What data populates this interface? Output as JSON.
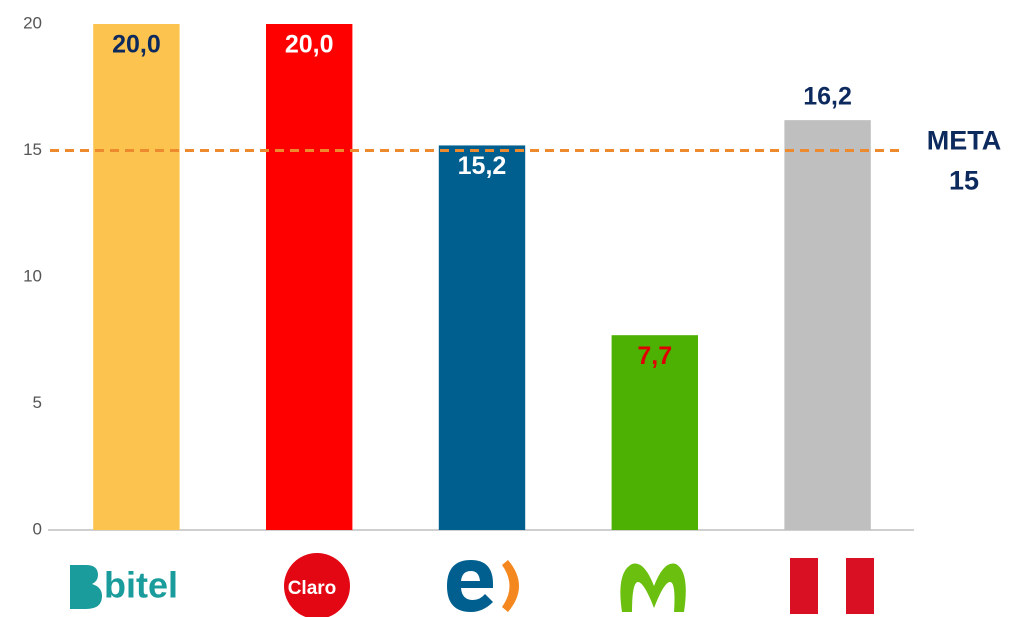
{
  "chart_data": {
    "type": "bar",
    "categories": [
      "bitel",
      "Claro",
      null,
      null,
      null
    ],
    "values": [
      20.0,
      20.0,
      15.2,
      7.7,
      16.2
    ],
    "value_labels": [
      "20,0",
      "20,0",
      "15,2",
      "7,7",
      "16,2"
    ],
    "colors": [
      "#fcc44e",
      "#ff0000",
      "#005f8f",
      "#4cb102",
      "#bfbfbf"
    ],
    "value_label_colors": [
      "#0d2a5e",
      "#ffffff",
      "#ffffff",
      "#e00000",
      "#0d2a5e"
    ],
    "value_label_positions": [
      "inside",
      "inside",
      "inside",
      "inside",
      "outside"
    ],
    "ylim": [
      0,
      20
    ],
    "yticks": [
      0,
      5,
      10,
      15,
      20
    ],
    "reference_line": {
      "value": 15,
      "label": "META",
      "color": "#ed8a2e"
    }
  }
}
